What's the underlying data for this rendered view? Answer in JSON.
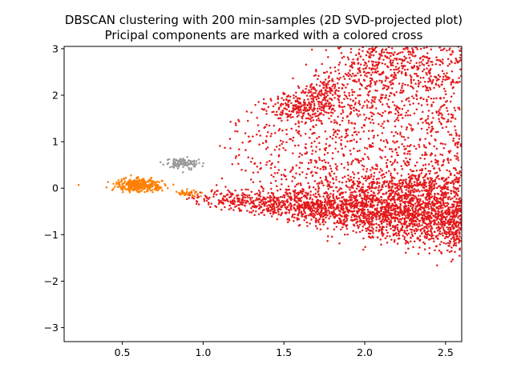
{
  "chart_data": {
    "type": "scatter",
    "title": "DBSCAN clustering with 200 min-samples (2D SVD-projected plot)",
    "subtitle": "Pricipal components are marked with a colored cross",
    "xlabel": "",
    "ylabel": "",
    "xlim": [
      0.14,
      2.6
    ],
    "ylim": [
      -3.3,
      3.05
    ],
    "xticks": [
      0.5,
      1.0,
      1.5,
      2.0,
      2.5
    ],
    "xtick_labels": [
      "0.5",
      "1.0",
      "1.5",
      "2.0",
      "2.5"
    ],
    "yticks": [
      -3,
      -2,
      -1,
      0,
      1,
      2,
      3
    ],
    "ytick_labels": [
      "−3",
      "−2",
      "−1",
      "0",
      "1",
      "2",
      "3"
    ],
    "grid": false,
    "legend": "none",
    "series": [
      {
        "color": "#e41a1c",
        "approx_points": 4200,
        "regions": [
          {
            "shape": "wedge",
            "x_range": [
              0.88,
              2.6
            ],
            "y_top_at_start": -0.12,
            "y_top_slope": 0.12,
            "y_bottom_at_start": -0.28,
            "y_bottom_slope": -0.6,
            "count": 2600,
            "density_increases_with_x": true
          },
          {
            "shape": "upper-fan",
            "x_range": [
              1.05,
              2.6
            ],
            "y_floor": 0.0,
            "y_ceiling_at_start": 1.3,
            "y_ceiling_slope": 1.8,
            "count": 1500
          },
          {
            "shape": "blob",
            "x": 1.6,
            "y": 1.75,
            "sx": 0.09,
            "sy": 0.12,
            "count": 160
          },
          {
            "shape": "blob",
            "x": 1.75,
            "y": 2.05,
            "sx": 0.07,
            "sy": 0.18,
            "count": 130
          },
          {
            "shape": "blob",
            "x": 2.15,
            "y": 2.7,
            "sx": 0.22,
            "sy": 0.28,
            "count": 250
          },
          {
            "shape": "blob",
            "x": 2.3,
            "y": 0.05,
            "sx": 0.25,
            "sy": 0.2,
            "count": 180
          }
        ]
      },
      {
        "color": "#ff7f00",
        "approx_points": 380,
        "regions": [
          {
            "shape": "blob",
            "x": 0.6,
            "y": 0.07,
            "sx": 0.07,
            "sy": 0.065,
            "count": 320
          },
          {
            "shape": "blob",
            "x": 0.9,
            "y": -0.1,
            "sx": 0.04,
            "sy": 0.04,
            "count": 40
          },
          {
            "shape": "point",
            "x": 0.23,
            "y": 0.07
          }
        ]
      },
      {
        "color": "#999999",
        "approx_points": 110,
        "regions": [
          {
            "shape": "blob",
            "x": 0.88,
            "y": 0.52,
            "sx": 0.05,
            "sy": 0.06,
            "count": 110
          }
        ]
      }
    ]
  }
}
